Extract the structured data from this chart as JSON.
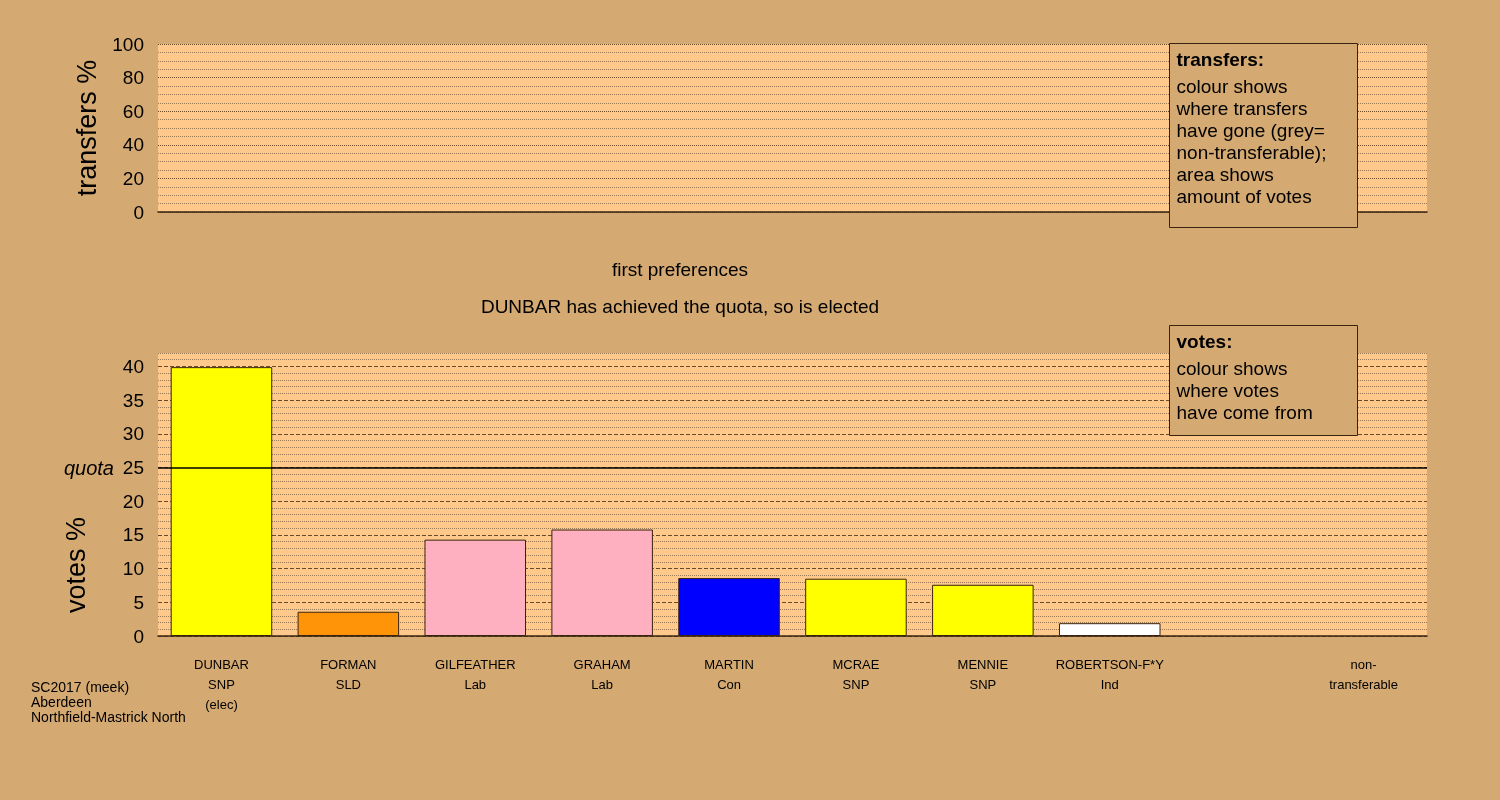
{
  "chart_data": [
    {
      "type": "bar",
      "ylabel": "transfers %",
      "categories": [
        null,
        null,
        null,
        null,
        null,
        null,
        null,
        null,
        null,
        null
      ],
      "values": [
        null,
        null,
        null,
        null,
        null,
        null,
        null,
        null,
        null,
        null
      ],
      "ylim": [
        0,
        100
      ],
      "yticks": [
        0,
        {
          "value": 5,
          "label": null
        },
        {
          "value": 10,
          "label": null
        },
        {
          "value": 15,
          "label": null
        },
        20,
        {
          "value": 25,
          "label": null
        },
        {
          "value": 30,
          "label": null
        },
        {
          "value": 35,
          "label": null
        },
        40,
        {
          "value": 45,
          "label": null
        },
        {
          "value": 50,
          "label": null
        },
        {
          "value": 55,
          "label": null
        },
        60,
        {
          "value": 65,
          "label": null
        },
        {
          "value": 70,
          "label": null
        },
        {
          "value": 75,
          "label": null
        },
        80,
        {
          "value": 85,
          "label": null
        },
        {
          "value": 90,
          "label": null
        },
        {
          "value": 95,
          "label": null
        },
        100
      ],
      "grid": "y",
      "tick_labels": "y",
      "annotations": [
        "transfers:",
        "colour shows\nwhere transfers\nhave gone (grey=\nnon-transferable);",
        "area shows\namount of votes"
      ]
    },
    {
      "type": "bar",
      "title": "first preferences",
      "subtitle": "DUNBAR has achieved the quota, so is elected",
      "ylabel": "votes %",
      "categories": [
        "DUNBAR\nSNP\n(elec)",
        "FORMAN\nSLD",
        "GILFEATHER\nLab",
        "GRAHAM\nLab",
        "MARTIN\nCon",
        "MCRAE\nSNP",
        "MENNIE\nSNP",
        "ROBERTSON-F*Y\nInd",
        null,
        "non-\ntransferable"
      ],
      "values": [
        39.9,
        3.6,
        14.3,
        15.8,
        8.6,
        8.5,
        7.6,
        1.9,
        null,
        null
      ],
      "colors": [
        "#ffff00",
        "#ff9408",
        "#ffb0c0",
        "#ffb0c0",
        "#0000ff",
        "#ffff00",
        "#ffff00",
        "#ffffff",
        null,
        null
      ],
      "ylim": [
        0,
        42
      ],
      "yticks": [
        0,
        {
          "value": 1,
          "label": null
        },
        {
          "value": 2,
          "label": null
        },
        {
          "value": 3,
          "label": null
        },
        {
          "value": 4,
          "label": null
        },
        5,
        {
          "value": 6,
          "label": null
        },
        {
          "value": 7,
          "label": null
        },
        {
          "value": 8,
          "label": null
        },
        {
          "value": 9,
          "label": null
        },
        10,
        {
          "value": 11,
          "label": null
        },
        {
          "value": 12,
          "label": null
        },
        {
          "value": 13,
          "label": null
        },
        {
          "value": 14,
          "label": null
        },
        15,
        {
          "value": 16,
          "label": null
        },
        {
          "value": 17,
          "label": null
        },
        {
          "value": 18,
          "label": null
        },
        {
          "value": 19,
          "label": null
        },
        20,
        {
          "value": 21,
          "label": null
        },
        {
          "value": 22,
          "label": null
        },
        {
          "value": 23,
          "label": null
        },
        {
          "value": 24,
          "label": null
        },
        25,
        {
          "value": 26,
          "label": null
        },
        {
          "value": 27,
          "label": null
        },
        {
          "value": 28,
          "label": null
        },
        {
          "value": 29,
          "label": null
        },
        30,
        {
          "value": 31,
          "label": null
        },
        {
          "value": 32,
          "label": null
        },
        {
          "value": 33,
          "label": null
        },
        {
          "value": 34,
          "label": null
        },
        35,
        {
          "value": 36,
          "label": null
        },
        {
          "value": 37,
          "label": null
        },
        {
          "value": 38,
          "label": null
        },
        {
          "value": 39,
          "label": null
        },
        40,
        {
          "value": 41,
          "label": null
        },
        {
          "value": 42,
          "label": null
        }
      ],
      "grid": "y",
      "ref_lines": [
        {
          "axis": "y",
          "value": 25,
          "label": "quota",
          "color": "#000000"
        }
      ],
      "annotations": [
        "votes:",
        "colour shows\nwhere votes\nhave come from",
        "SC2017 (meek)\nAberdeen\nNorthfield-Mastrick North"
      ]
    }
  ]
}
